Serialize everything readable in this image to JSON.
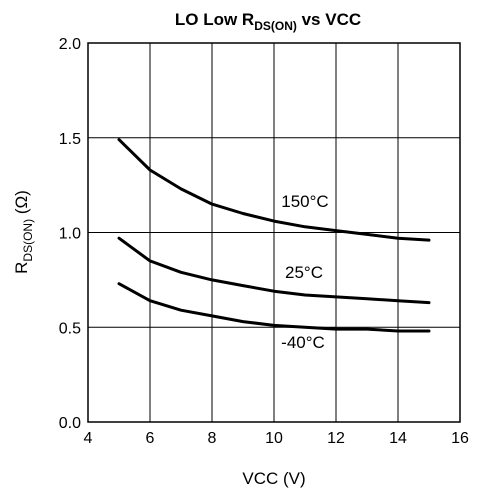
{
  "chart_data": {
    "type": "line",
    "title": {
      "prefix": "LO Low R",
      "subscript": "DS(ON)",
      "suffix": " vs VCC"
    },
    "xlabel": "VCC (V)",
    "ylabel": {
      "prefix": "R",
      "subscript": "DS(ON)",
      "suffix": " (Ω)"
    },
    "xlim": [
      4,
      16
    ],
    "ylim": [
      0.0,
      2.0
    ],
    "xticks": [
      "4",
      "6",
      "8",
      "10",
      "12",
      "14",
      "16"
    ],
    "yticks": [
      "0.0",
      "0.5",
      "1.0",
      "1.5",
      "2.0"
    ],
    "grid": true,
    "legend": "none",
    "series": [
      {
        "name": "150°C",
        "x": [
          5,
          6,
          7,
          8,
          9,
          10,
          11,
          12,
          13,
          14,
          15
        ],
        "y": [
          1.49,
          1.33,
          1.23,
          1.15,
          1.1,
          1.06,
          1.03,
          1.01,
          0.99,
          0.97,
          0.96
        ]
      },
      {
        "name": "25°C",
        "x": [
          5,
          6,
          7,
          8,
          9,
          10,
          11,
          12,
          13,
          14,
          15
        ],
        "y": [
          0.97,
          0.85,
          0.79,
          0.75,
          0.72,
          0.69,
          0.67,
          0.66,
          0.65,
          0.64,
          0.63
        ]
      },
      {
        "name": "-40°C",
        "x": [
          5,
          6,
          7,
          8,
          9,
          10,
          11,
          12,
          13,
          14,
          15
        ],
        "y": [
          0.73,
          0.64,
          0.59,
          0.56,
          0.53,
          0.51,
          0.5,
          0.49,
          0.49,
          0.48,
          0.48
        ]
      }
    ]
  }
}
